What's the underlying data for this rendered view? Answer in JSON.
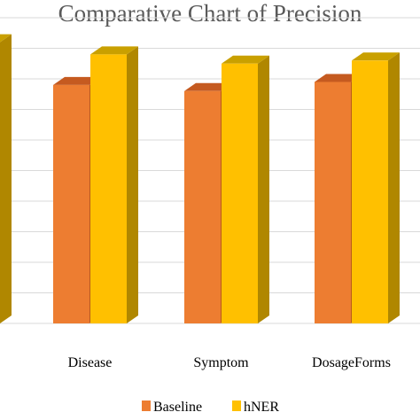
{
  "chart_data": {
    "type": "bar",
    "title": "Comparative Chart of Precision",
    "categories": [
      "Disease",
      "Symptom",
      "DosageForms"
    ],
    "series": [
      {
        "name": "Baseline",
        "values": [
          78,
          76,
          79
        ]
      },
      {
        "name": "hNER",
        "values": [
          88,
          85,
          86
        ]
      }
    ],
    "partial_left_bar": {
      "series": "hNER",
      "value": 92
    },
    "ylim": [
      0,
      100
    ],
    "grid": true,
    "legend_position": "bottom",
    "colors": {
      "Baseline": {
        "front": "#ED7D31",
        "top": "#C55A20",
        "side": "#B85A1C"
      },
      "hNER": {
        "front": "#FFC000",
        "top": "#C9A000",
        "side": "#B08700"
      },
      "grid": "#D9D9D9",
      "title": "#595959"
    }
  }
}
